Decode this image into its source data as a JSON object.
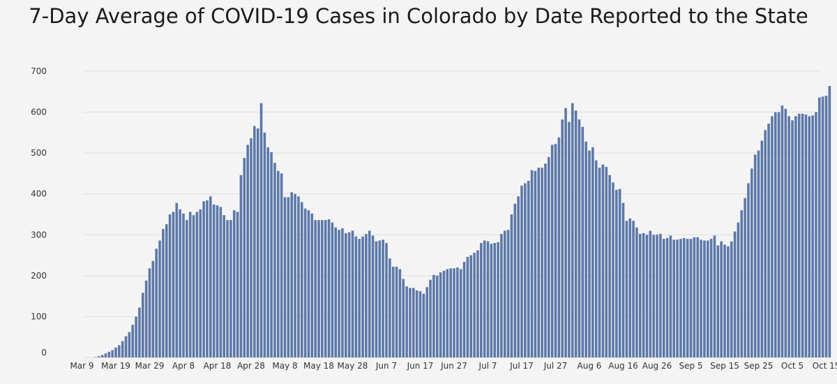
{
  "chart_data": {
    "type": "bar",
    "title": "7-Day Average of COVID-19 Cases in Colorado by Date Reported to the State",
    "xlabel": "",
    "ylabel": "",
    "ylim": [
      0,
      700
    ],
    "y_ticks": [
      0,
      100,
      200,
      300,
      400,
      500,
      600,
      700
    ],
    "x_start": "2020-03-09",
    "x_ticks": [
      {
        "label": "Mar 9",
        "date": "2020-03-09"
      },
      {
        "label": "Mar 19",
        "date": "2020-03-19"
      },
      {
        "label": "Mar 29",
        "date": "2020-03-29"
      },
      {
        "label": "Apr 8",
        "date": "2020-04-08"
      },
      {
        "label": "Apr 18",
        "date": "2020-04-18"
      },
      {
        "label": "Apr 28",
        "date": "2020-04-28"
      },
      {
        "label": "May 8",
        "date": "2020-05-08"
      },
      {
        "label": "May 18",
        "date": "2020-05-18"
      },
      {
        "label": "May 28",
        "date": "2020-05-28"
      },
      {
        "label": "Jun 7",
        "date": "2020-06-07"
      },
      {
        "label": "Jun 17",
        "date": "2020-06-17"
      },
      {
        "label": "Jun 27",
        "date": "2020-06-27"
      },
      {
        "label": "Jul 7",
        "date": "2020-07-07"
      },
      {
        "label": "Jul 17",
        "date": "2020-07-17"
      },
      {
        "label": "Jul 27",
        "date": "2020-07-27"
      },
      {
        "label": "Aug 6",
        "date": "2020-08-06"
      },
      {
        "label": "Aug 16",
        "date": "2020-08-16"
      },
      {
        "label": "Aug 26",
        "date": "2020-08-26"
      },
      {
        "label": "Sep 5",
        "date": "2020-09-05"
      },
      {
        "label": "Sep 15",
        "date": "2020-09-15"
      },
      {
        "label": "Sep 25",
        "date": "2020-09-25"
      },
      {
        "label": "Oct 5",
        "date": "2020-10-05"
      },
      {
        "label": "Oct 15",
        "date": "2020-10-15"
      }
    ],
    "bar_color": "#5c78a8",
    "grid": true,
    "legend": "none",
    "values": [
      0,
      0,
      0,
      0,
      1,
      3,
      6,
      10,
      14,
      18,
      24,
      30,
      40,
      52,
      62,
      80,
      100,
      122,
      158,
      188,
      218,
      236,
      266,
      286,
      314,
      326,
      350,
      356,
      378,
      362,
      352,
      336,
      356,
      348,
      356,
      362,
      382,
      384,
      394,
      374,
      372,
      368,
      348,
      336,
      336,
      360,
      356,
      446,
      488,
      520,
      536,
      566,
      560,
      622,
      550,
      514,
      502,
      476,
      456,
      450,
      392,
      392,
      404,
      400,
      394,
      380,
      364,
      360,
      352,
      336,
      336,
      336,
      336,
      338,
      330,
      318,
      312,
      316,
      304,
      306,
      310,
      296,
      290,
      296,
      302,
      310,
      298,
      284,
      286,
      288,
      280,
      242,
      222,
      222,
      216,
      192,
      174,
      170,
      170,
      164,
      162,
      156,
      172,
      190,
      202,
      200,
      208,
      212,
      216,
      218,
      218,
      220,
      216,
      234,
      246,
      250,
      256,
      262,
      280,
      286,
      284,
      278,
      280,
      282,
      302,
      310,
      312,
      350,
      376,
      394,
      420,
      426,
      432,
      458,
      456,
      464,
      464,
      474,
      490,
      520,
      522,
      538,
      582,
      610,
      576,
      622,
      604,
      582,
      564,
      528,
      506,
      514,
      482,
      464,
      472,
      466,
      446,
      428,
      410,
      412,
      378,
      334,
      340,
      334,
      318,
      302,
      304,
      300,
      310,
      300,
      300,
      302,
      290,
      292,
      298,
      288,
      288,
      290,
      292,
      290,
      290,
      294,
      294,
      288,
      286,
      286,
      290,
      298,
      274,
      284,
      276,
      272,
      284,
      308,
      330,
      360,
      390,
      426,
      462,
      496,
      506,
      530,
      556,
      572,
      590,
      600,
      600,
      616,
      608,
      590,
      580,
      590,
      596,
      596,
      594,
      590,
      592,
      600,
      636,
      638,
      640,
      664
    ]
  }
}
